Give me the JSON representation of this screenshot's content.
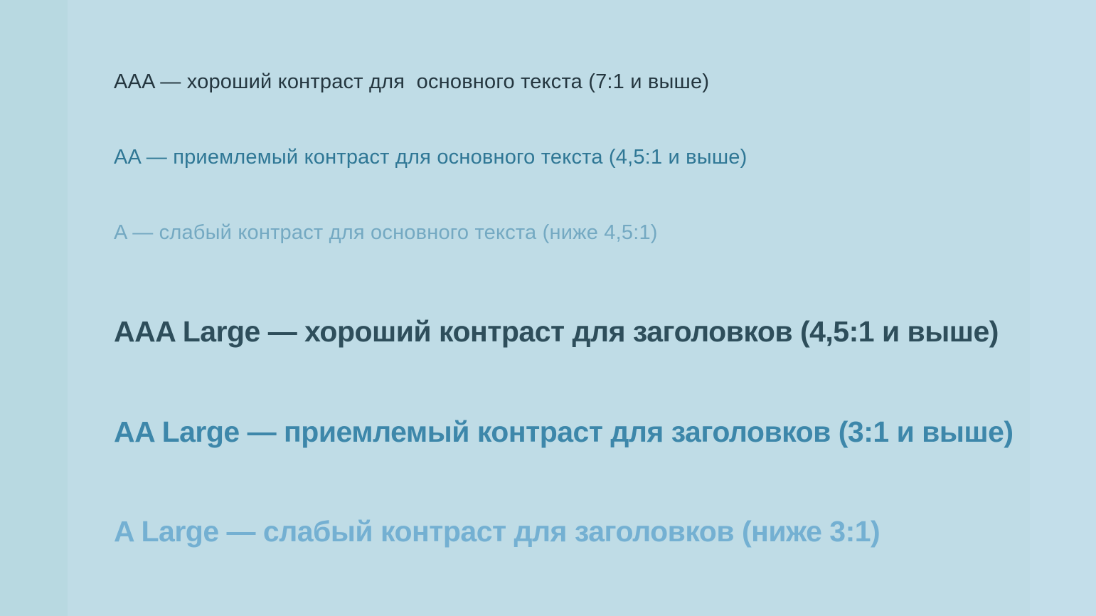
{
  "page": {
    "background": {
      "edge_left_color": "#b8d9e1",
      "canvas_color": "#bfdce6",
      "edge_right_color": "#c3deea"
    }
  },
  "contrast_demo": {
    "lines": [
      {
        "id": "aaa",
        "level": "AAA",
        "text": "AAA — хороший контраст для  основного текста (7:1 и выше)",
        "color": "#24363f"
      },
      {
        "id": "aa",
        "level": "AA",
        "text": "AA — приемлемый контраст для основного текста (4,5:1 и выше)",
        "color": "#2f7795"
      },
      {
        "id": "a",
        "level": "A",
        "text": "A — слабый контраст для основного текста (ниже 4,5:1)",
        "color": "#74a9c2"
      },
      {
        "id": "aaa-large",
        "level": "AAA Large",
        "text": "AAA Large — хороший контраст для заголовков (4,5:1 и выше)",
        "color": "#2e4e5b"
      },
      {
        "id": "aa-large",
        "level": "AA Large",
        "text": "AA Large — приемлемый контраст для заголовков (3:1 и выше)",
        "color": "#3d87aa"
      },
      {
        "id": "a-large",
        "level": "A Large",
        "text": "A Large — слабый контраст для заголовков (ниже 3:1)",
        "color": "#74b0d2"
      }
    ]
  }
}
